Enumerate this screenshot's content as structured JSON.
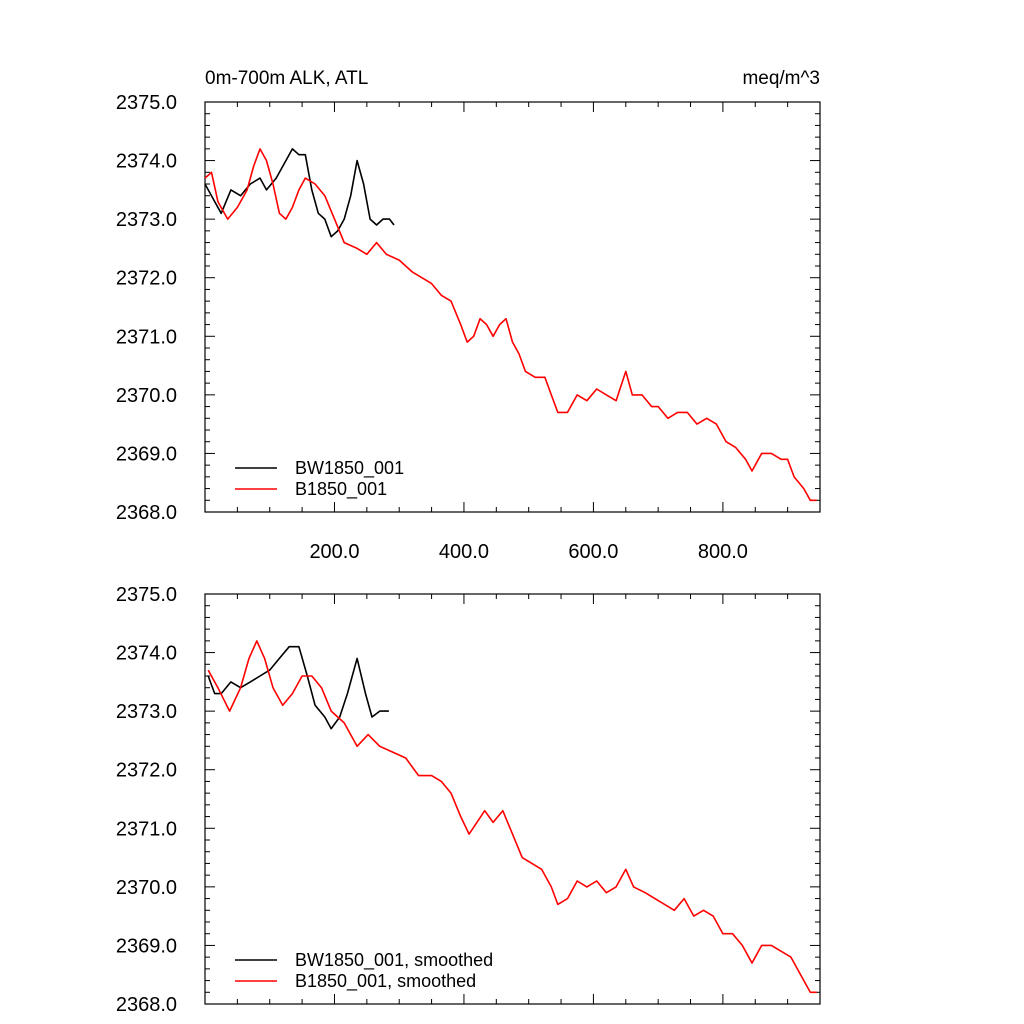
{
  "chart_data": [
    {
      "type": "line",
      "title_left": "0m-700m ALK, ATL",
      "title_right": "meq/m^3",
      "xlim": [
        0,
        950
      ],
      "ylim": [
        2368.0,
        2375.0
      ],
      "xticks": [
        200,
        400,
        600,
        800
      ],
      "xtick_labels": [
        "200.0",
        "400.0",
        "600.0",
        "800.0"
      ],
      "yticks": [
        2368,
        2369,
        2370,
        2371,
        2372,
        2373,
        2374,
        2375
      ],
      "ytick_labels": [
        "2368.0",
        "2369.0",
        "2370.0",
        "2371.0",
        "2372.0",
        "2373.0",
        "2374.0",
        "2375.0"
      ],
      "legend": "bottom-left",
      "series": [
        {
          "name": "BW1850_001",
          "color": "#000000",
          "points": [
            [
              0,
              2373.6
            ],
            [
              15,
              2373.3
            ],
            [
              25,
              2373.1
            ],
            [
              40,
              2373.5
            ],
            [
              55,
              2373.4
            ],
            [
              70,
              2373.6
            ],
            [
              85,
              2373.7
            ],
            [
              95,
              2373.5
            ],
            [
              110,
              2373.7
            ],
            [
              125,
              2374.0
            ],
            [
              135,
              2374.2
            ],
            [
              145,
              2374.1
            ],
            [
              155,
              2374.1
            ],
            [
              165,
              2373.5
            ],
            [
              175,
              2373.1
            ],
            [
              185,
              2373.0
            ],
            [
              195,
              2372.7
            ],
            [
              205,
              2372.8
            ],
            [
              215,
              2373.0
            ],
            [
              225,
              2373.4
            ],
            [
              235,
              2374.0
            ],
            [
              245,
              2373.6
            ],
            [
              255,
              2373.0
            ],
            [
              265,
              2372.9
            ],
            [
              275,
              2373.0
            ],
            [
              285,
              2373.0
            ],
            [
              292,
              2372.9
            ]
          ]
        },
        {
          "name": "B1850_001",
          "color": "#ff0000",
          "points": [
            [
              0,
              2373.7
            ],
            [
              10,
              2373.8
            ],
            [
              20,
              2373.3
            ],
            [
              35,
              2373.0
            ],
            [
              50,
              2373.2
            ],
            [
              65,
              2373.5
            ],
            [
              75,
              2373.9
            ],
            [
              85,
              2374.2
            ],
            [
              95,
              2374.0
            ],
            [
              105,
              2373.6
            ],
            [
              115,
              2373.1
            ],
            [
              125,
              2373.0
            ],
            [
              135,
              2373.2
            ],
            [
              145,
              2373.5
            ],
            [
              155,
              2373.7
            ],
            [
              170,
              2373.6
            ],
            [
              185,
              2373.4
            ],
            [
              200,
              2373.0
            ],
            [
              215,
              2372.6
            ],
            [
              235,
              2372.5
            ],
            [
              250,
              2372.4
            ],
            [
              265,
              2372.6
            ],
            [
              280,
              2372.4
            ],
            [
              300,
              2372.3
            ],
            [
              320,
              2372.1
            ],
            [
              335,
              2372.0
            ],
            [
              350,
              2371.9
            ],
            [
              365,
              2371.7
            ],
            [
              380,
              2371.6
            ],
            [
              395,
              2371.2
            ],
            [
              405,
              2370.9
            ],
            [
              415,
              2371.0
            ],
            [
              425,
              2371.3
            ],
            [
              435,
              2371.2
            ],
            [
              445,
              2371.0
            ],
            [
              455,
              2371.2
            ],
            [
              465,
              2371.3
            ],
            [
              475,
              2370.9
            ],
            [
              485,
              2370.7
            ],
            [
              495,
              2370.4
            ],
            [
              510,
              2370.3
            ],
            [
              525,
              2370.3
            ],
            [
              535,
              2370.0
            ],
            [
              545,
              2369.7
            ],
            [
              560,
              2369.7
            ],
            [
              575,
              2370.0
            ],
            [
              590,
              2369.9
            ],
            [
              605,
              2370.1
            ],
            [
              620,
              2370.0
            ],
            [
              635,
              2369.9
            ],
            [
              650,
              2370.4
            ],
            [
              660,
              2370.0
            ],
            [
              675,
              2370.0
            ],
            [
              690,
              2369.8
            ],
            [
              700,
              2369.8
            ],
            [
              715,
              2369.6
            ],
            [
              730,
              2369.7
            ],
            [
              745,
              2369.7
            ],
            [
              760,
              2369.5
            ],
            [
              775,
              2369.6
            ],
            [
              790,
              2369.5
            ],
            [
              805,
              2369.2
            ],
            [
              820,
              2369.1
            ],
            [
              835,
              2368.9
            ],
            [
              845,
              2368.7
            ],
            [
              860,
              2369.0
            ],
            [
              875,
              2369.0
            ],
            [
              890,
              2368.9
            ],
            [
              900,
              2368.9
            ],
            [
              910,
              2368.6
            ],
            [
              925,
              2368.4
            ],
            [
              935,
              2368.2
            ],
            [
              945,
              2368.2
            ]
          ]
        }
      ]
    },
    {
      "type": "line",
      "xlim": [
        0,
        950
      ],
      "ylim": [
        2368.0,
        2375.0
      ],
      "xticks": [
        200,
        400,
        600,
        800
      ],
      "yticks": [
        2368,
        2369,
        2370,
        2371,
        2372,
        2373,
        2374,
        2375
      ],
      "ytick_labels": [
        "2368.0",
        "2369.0",
        "2370.0",
        "2371.0",
        "2372.0",
        "2373.0",
        "2374.0",
        "2375.0"
      ],
      "legend": "bottom-left",
      "series": [
        {
          "name": "BW1850_001, smoothed",
          "color": "#000000",
          "points": [
            [
              5,
              2373.6
            ],
            [
              15,
              2373.3
            ],
            [
              25,
              2373.3
            ],
            [
              40,
              2373.5
            ],
            [
              55,
              2373.4
            ],
            [
              70,
              2373.5
            ],
            [
              85,
              2373.6
            ],
            [
              100,
              2373.7
            ],
            [
              115,
              2373.9
            ],
            [
              130,
              2374.1
            ],
            [
              145,
              2374.1
            ],
            [
              158,
              2373.6
            ],
            [
              170,
              2373.1
            ],
            [
              185,
              2372.9
            ],
            [
              195,
              2372.7
            ],
            [
              208,
              2372.9
            ],
            [
              220,
              2373.3
            ],
            [
              235,
              2373.9
            ],
            [
              248,
              2373.3
            ],
            [
              258,
              2372.9
            ],
            [
              270,
              2373.0
            ],
            [
              284,
              2373.0
            ]
          ]
        },
        {
          "name": "B1850_001, smoothed",
          "color": "#ff0000",
          "points": [
            [
              5,
              2373.7
            ],
            [
              20,
              2373.4
            ],
            [
              38,
              2373.0
            ],
            [
              55,
              2373.4
            ],
            [
              68,
              2373.9
            ],
            [
              80,
              2374.2
            ],
            [
              92,
              2373.9
            ],
            [
              105,
              2373.4
            ],
            [
              120,
              2373.1
            ],
            [
              135,
              2373.3
            ],
            [
              150,
              2373.6
            ],
            [
              165,
              2373.6
            ],
            [
              180,
              2373.4
            ],
            [
              195,
              2373.0
            ],
            [
              215,
              2372.8
            ],
            [
              235,
              2372.4
            ],
            [
              252,
              2372.6
            ],
            [
              270,
              2372.4
            ],
            [
              290,
              2372.3
            ],
            [
              310,
              2372.2
            ],
            [
              330,
              2371.9
            ],
            [
              350,
              2371.9
            ],
            [
              365,
              2371.8
            ],
            [
              380,
              2371.6
            ],
            [
              395,
              2371.2
            ],
            [
              408,
              2370.9
            ],
            [
              420,
              2371.1
            ],
            [
              432,
              2371.3
            ],
            [
              445,
              2371.1
            ],
            [
              460,
              2371.3
            ],
            [
              475,
              2370.9
            ],
            [
              490,
              2370.5
            ],
            [
              505,
              2370.4
            ],
            [
              520,
              2370.3
            ],
            [
              535,
              2370.0
            ],
            [
              545,
              2369.7
            ],
            [
              560,
              2369.8
            ],
            [
              575,
              2370.1
            ],
            [
              590,
              2370.0
            ],
            [
              605,
              2370.1
            ],
            [
              620,
              2369.9
            ],
            [
              635,
              2370.0
            ],
            [
              650,
              2370.3
            ],
            [
              662,
              2370.0
            ],
            [
              680,
              2369.9
            ],
            [
              695,
              2369.8
            ],
            [
              710,
              2369.7
            ],
            [
              725,
              2369.6
            ],
            [
              740,
              2369.8
            ],
            [
              755,
              2369.5
            ],
            [
              770,
              2369.6
            ],
            [
              785,
              2369.5
            ],
            [
              800,
              2369.2
            ],
            [
              815,
              2369.2
            ],
            [
              830,
              2369.0
            ],
            [
              845,
              2368.7
            ],
            [
              860,
              2369.0
            ],
            [
              875,
              2369.0
            ],
            [
              890,
              2368.9
            ],
            [
              905,
              2368.8
            ],
            [
              920,
              2368.5
            ],
            [
              935,
              2368.2
            ],
            [
              945,
              2368.2
            ]
          ]
        }
      ]
    }
  ]
}
